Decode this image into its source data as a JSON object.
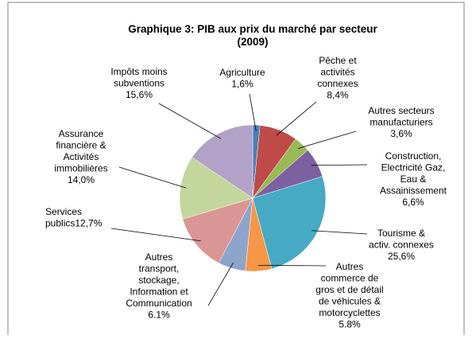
{
  "chart_data": {
    "type": "pie",
    "title": "Graphique 3: PIB aux prix du marché par secteur",
    "subtitle": "(2009)",
    "categories": [
      [
        "Agriculture"
      ],
      [
        "Pêche et",
        "activités",
        "connexes"
      ],
      [
        "Autres secteurs",
        "manufacturiers"
      ],
      [
        "Construction,",
        "Electricité Gaz,",
        "Eau &",
        "Assainissement"
      ],
      [
        "Tourisme &",
        "activ. connexes"
      ],
      [
        "Autres",
        "commerce de",
        "gros et de détail",
        "de véhicules &",
        "motorcyclettes"
      ],
      [
        "Autres",
        "transport,",
        "stockage,",
        "Information et",
        "Communication"
      ],
      [
        "Services",
        "publics"
      ],
      [
        "Assurance",
        "financière &",
        "Activités",
        "immobilières"
      ],
      [
        "Impôts moins",
        "subventions"
      ]
    ],
    "values": [
      1.6,
      8.4,
      3.6,
      6.6,
      25.6,
      5.8,
      6.1,
      12.7,
      14.0,
      15.6
    ],
    "value_labels": [
      "1,6%",
      "8,4%",
      "3,6%",
      "6,6%",
      "25,6%",
      "5.8%",
      "6.1%",
      "12,7%",
      "14,0%",
      "15,6%"
    ],
    "colors": [
      "#4a7ebb",
      "#be4b48",
      "#98b954",
      "#7d60a0",
      "#46aac5",
      "#f79646",
      "#8ea5cb",
      "#d99694",
      "#c3d69b",
      "#b3a2c7"
    ]
  }
}
